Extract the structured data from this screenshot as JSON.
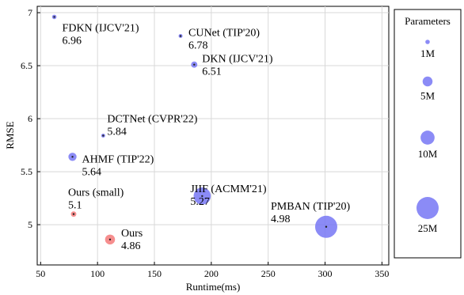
{
  "chart_data": {
    "type": "scatter",
    "xlabel": "Runtime(ms)",
    "ylabel": "RMSE",
    "xlim": [
      47,
      356
    ],
    "ylim": [
      4.62,
      7.06
    ],
    "xticks": [
      50,
      100,
      150,
      200,
      250,
      300,
      350
    ],
    "yticks": [
      5,
      5.5,
      6,
      6.5,
      7
    ],
    "ytick_labels": [
      "5",
      "5.5",
      "6",
      "6.5",
      "7"
    ],
    "grid": true,
    "points": [
      {
        "name": "FDKN (IJCV'21)",
        "value_label": "6.96",
        "x": 62,
        "y": 6.96,
        "params_m": 1,
        "color": "#7777f5"
      },
      {
        "name": "CUNet (TIP'20)",
        "value_label": "6.78",
        "x": 173,
        "y": 6.78,
        "params_m": 0.8,
        "color": "#7777f5"
      },
      {
        "name": "DKN (IJCV'21)",
        "value_label": "6.51",
        "x": 185,
        "y": 6.51,
        "params_m": 2,
        "color": "#7777f5"
      },
      {
        "name": "DCTNet (CVPR'22)",
        "value_label": "5.84",
        "x": 105,
        "y": 5.84,
        "params_m": 0.8,
        "color": "#7777f5"
      },
      {
        "name": "AHMF (TIP'22)",
        "value_label": "5.64",
        "x": 78,
        "y": 5.64,
        "params_m": 3.4,
        "color": "#7777f5"
      },
      {
        "name": "JIIF (ACMM'21)",
        "value_label": "5.27",
        "x": 192,
        "y": 5.27,
        "params_m": 15,
        "color": "#7777f5"
      },
      {
        "name": "PMBAN (TIP'20)",
        "value_label": "4.98",
        "x": 301,
        "y": 4.98,
        "params_m": 25,
        "color": "#7777f5"
      },
      {
        "name": "Ours (small)",
        "value_label": "5.1",
        "x": 79,
        "y": 5.1,
        "params_m": 1.5,
        "color": "#f57a7a"
      },
      {
        "name": "Ours",
        "value_label": "4.86",
        "x": 111,
        "y": 4.86,
        "params_m": 5,
        "color": "#f57a7a"
      }
    ],
    "legend": {
      "title": "Parameters",
      "placement": "right",
      "entries": [
        {
          "label": "1M",
          "params_m": 1
        },
        {
          "label": "5M",
          "params_m": 5
        },
        {
          "label": "10M",
          "params_m": 10
        },
        {
          "label": "25M",
          "params_m": 25
        }
      ],
      "color": "#7777f5"
    }
  }
}
